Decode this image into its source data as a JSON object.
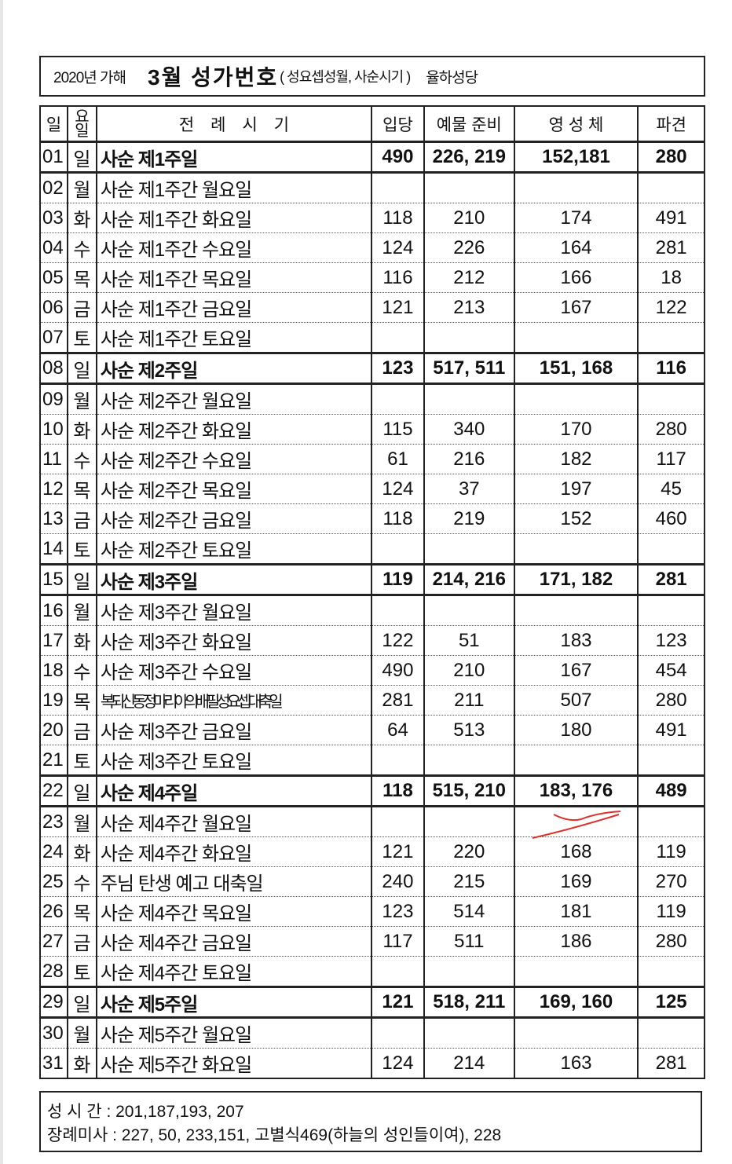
{
  "title": {
    "year": "2020년 가해",
    "main": "3월 성가번호",
    "sub": "( 성요셉성월, 사순시기 )",
    "parish": "율하성당"
  },
  "headers": {
    "day": "일",
    "weekday": "요일",
    "liturgy": "전　례　시　기",
    "entrance": "입당",
    "offertory": "예물 준비",
    "communion": "영 성 체",
    "recessional": "파견"
  },
  "rows": [
    {
      "d": "01",
      "w": "일",
      "n": "사순 제1주일",
      "e": "490",
      "o": "226, 219",
      "c": "152,181",
      "r": "280",
      "sun": true
    },
    {
      "d": "02",
      "w": "월",
      "n": "사순 제1주간 월요일",
      "e": "",
      "o": "",
      "c": "",
      "r": ""
    },
    {
      "d": "03",
      "w": "화",
      "n": "사순 제1주간 화요일",
      "e": "118",
      "o": "210",
      "c": "174",
      "r": "491"
    },
    {
      "d": "04",
      "w": "수",
      "n": "사순 제1주간 수요일",
      "e": "124",
      "o": "226",
      "c": "164",
      "r": "281"
    },
    {
      "d": "05",
      "w": "목",
      "n": "사순 제1주간 목요일",
      "e": "116",
      "o": "212",
      "c": "166",
      "r": "18"
    },
    {
      "d": "06",
      "w": "금",
      "n": "사순 제1주간 금요일",
      "e": "121",
      "o": "213",
      "c": "167",
      "r": "122"
    },
    {
      "d": "07",
      "w": "토",
      "n": "사순 제1주간 토요일",
      "e": "",
      "o": "",
      "c": "",
      "r": ""
    },
    {
      "d": "08",
      "w": "일",
      "n": "사순 제2주일",
      "e": "123",
      "o": "517, 511",
      "c": "151, 168",
      "r": "116",
      "sun": true
    },
    {
      "d": "09",
      "w": "월",
      "n": "사순 제2주간 월요일",
      "e": "",
      "o": "",
      "c": "",
      "r": ""
    },
    {
      "d": "10",
      "w": "화",
      "n": "사순 제2주간 화요일",
      "e": "115",
      "o": "340",
      "c": "170",
      "r": "280"
    },
    {
      "d": "11",
      "w": "수",
      "n": "사순 제2주간 수요일",
      "e": "61",
      "o": "216",
      "c": "182",
      "r": "117"
    },
    {
      "d": "12",
      "w": "목",
      "n": "사순 제2주간 목요일",
      "e": "124",
      "o": "37",
      "c": "197",
      "r": "45"
    },
    {
      "d": "13",
      "w": "금",
      "n": "사순 제2주간 금요일",
      "e": "118",
      "o": "219",
      "c": "152",
      "r": "460"
    },
    {
      "d": "14",
      "w": "토",
      "n": "사순 제2주간 토요일",
      "e": "",
      "o": "",
      "c": "",
      "r": ""
    },
    {
      "d": "15",
      "w": "일",
      "n": "사순 제3주일",
      "e": "119",
      "o": "214, 216",
      "c": "171, 182",
      "r": "281",
      "sun": true
    },
    {
      "d": "16",
      "w": "월",
      "n": "사순 제3주간 월요일",
      "e": "",
      "o": "",
      "c": "",
      "r": ""
    },
    {
      "d": "17",
      "w": "화",
      "n": "사순 제3주간 화요일",
      "e": "122",
      "o": "51",
      "c": "183",
      "r": "123"
    },
    {
      "d": "18",
      "w": "수",
      "n": "사순 제3주간 수요일",
      "e": "490",
      "o": "210",
      "c": "167",
      "r": "454"
    },
    {
      "d": "19",
      "w": "목",
      "n": "복되신동정마리아의배필성요셉대축일",
      "e": "281",
      "o": "211",
      "c": "507",
      "r": "280",
      "comp": true
    },
    {
      "d": "20",
      "w": "금",
      "n": "사순 제3주간 금요일",
      "e": "64",
      "o": "513",
      "c": "180",
      "r": "491"
    },
    {
      "d": "21",
      "w": "토",
      "n": "사순 제3주간 토요일",
      "e": "",
      "o": "",
      "c": "",
      "r": ""
    },
    {
      "d": "22",
      "w": "일",
      "n": "사순 제4주일",
      "e": "118",
      "o": "515, 210",
      "c": "183, 176",
      "r": "489",
      "sun": true
    },
    {
      "d": "23",
      "w": "월",
      "n": "사순 제4주간 월요일",
      "e": "",
      "o": "",
      "c": "",
      "r": ""
    },
    {
      "d": "24",
      "w": "화",
      "n": "사순 제4주간 화요일",
      "e": "121",
      "o": "220",
      "c": "168",
      "r": "119"
    },
    {
      "d": "25",
      "w": "수",
      "n": "주님 탄생 예고 대축일",
      "e": "240",
      "o": "215",
      "c": "169",
      "r": "270"
    },
    {
      "d": "26",
      "w": "목",
      "n": "사순 제4주간 목요일",
      "e": "123",
      "o": "514",
      "c": "181",
      "r": "119"
    },
    {
      "d": "27",
      "w": "금",
      "n": "사순 제4주간 금요일",
      "e": "117",
      "o": "511",
      "c": "186",
      "r": "280"
    },
    {
      "d": "28",
      "w": "토",
      "n": "사순 제4주간 토요일",
      "e": "",
      "o": "",
      "c": "",
      "r": ""
    },
    {
      "d": "29",
      "w": "일",
      "n": "사순 제5주일",
      "e": "121",
      "o": "518, 211",
      "c": "169, 160",
      "r": "125",
      "sun": true
    },
    {
      "d": "30",
      "w": "월",
      "n": "사순 제5주간 월요일",
      "e": "",
      "o": "",
      "c": "",
      "r": ""
    },
    {
      "d": "31",
      "w": "화",
      "n": "사순 제5주간 화요일",
      "e": "124",
      "o": "214",
      "c": "163",
      "r": "281"
    }
  ],
  "footer": {
    "line1": "성 시 간 : 201,187,193, 207",
    "line2": "장례미사 : 227, 50, 233,151, 고별식469(하늘의 성인들이여), 228"
  },
  "colors": {
    "annotation": "#e0302a"
  }
}
